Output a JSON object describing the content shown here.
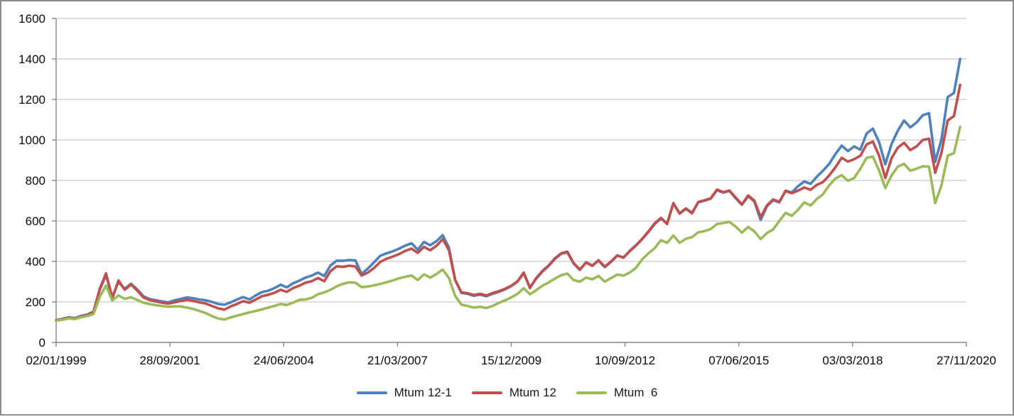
{
  "chart_data": {
    "type": "line",
    "title": "",
    "grid": "horizontal",
    "legend_position": "bottom",
    "x_axis": {
      "labels": [
        "02/01/1999",
        "28/09/2001",
        "24/06/2004",
        "21/03/2007",
        "15/12/2009",
        "10/09/2012",
        "07/06/2015",
        "03/03/2018",
        "27/11/2020"
      ],
      "start_year": 1999.0,
      "end_year": 2020.9
    },
    "y_axis": {
      "min": 0,
      "max": 1600,
      "step": 200,
      "tick_labels": [
        "0",
        "200",
        "400",
        "600",
        "800",
        "1000",
        "1200",
        "1400",
        "1600"
      ]
    },
    "colors": {
      "gridline": "#C9C9C9",
      "axis": "#868686",
      "text": "#0a0a0a",
      "frame": "#8C8C8C",
      "background": "#FFFFFF"
    },
    "sampling": {
      "start_year": 1999.0,
      "step_years": 0.15
    },
    "series": [
      {
        "id": "mtum-12-1",
        "name": "Mtum 12-1",
        "color": "#4F81BD",
        "values": [
          110,
          116,
          124,
          120,
          131,
          138,
          152,
          260,
          333,
          224,
          298,
          265,
          290,
          262,
          228,
          214,
          208,
          202,
          198,
          208,
          215,
          222,
          218,
          212,
          208,
          200,
          190,
          186,
          198,
          212,
          224,
          212,
          232,
          248,
          255,
          268,
          285,
          272,
          292,
          305,
          320,
          330,
          345,
          328,
          380,
          404,
          403,
          407,
          405,
          338,
          365,
          396,
          428,
          440,
          450,
          463,
          478,
          490,
          458,
          496,
          480,
          500,
          530,
          468,
          310,
          245,
          240,
          230,
          236,
          228,
          240,
          250,
          262,
          278,
          300,
          342,
          272,
          315,
          350,
          378,
          412,
          438,
          445,
          390,
          358,
          396,
          380,
          404,
          372,
          398,
          428,
          420,
          450,
          478,
          510,
          545,
          585,
          612,
          588,
          686,
          638,
          662,
          640,
          692,
          700,
          710,
          752,
          740,
          748,
          712,
          680,
          722,
          695,
          605,
          672,
          702,
          692,
          750,
          740,
          772,
          795,
          783,
          818,
          848,
          882,
          930,
          972,
          945,
          968,
          952,
          1032,
          1056,
          988,
          880,
          980,
          1046,
          1096,
          1062,
          1086,
          1122,
          1132,
          892,
          1002,
          1212,
          1232,
          1400
        ]
      },
      {
        "id": "mtum-12",
        "name": "Mtum 12",
        "color": "#C0504D",
        "values": [
          109,
          114,
          122,
          118,
          129,
          136,
          150,
          265,
          341,
          218,
          306,
          260,
          286,
          256,
          222,
          209,
          202,
          196,
          192,
          198,
          205,
          210,
          205,
          198,
          192,
          180,
          168,
          162,
          178,
          190,
          204,
          196,
          212,
          228,
          235,
          245,
          260,
          250,
          268,
          280,
          295,
          302,
          318,
          302,
          352,
          376,
          373,
          379,
          375,
          330,
          345,
          368,
          398,
          413,
          424,
          436,
          452,
          463,
          442,
          472,
          455,
          477,
          510,
          455,
          308,
          247,
          243,
          234,
          240,
          232,
          244,
          253,
          265,
          280,
          302,
          345,
          268,
          318,
          353,
          380,
          415,
          440,
          448,
          392,
          360,
          394,
          378,
          406,
          374,
          400,
          430,
          418,
          452,
          480,
          512,
          548,
          588,
          615,
          585,
          688,
          636,
          660,
          638,
          694,
          702,
          712,
          755,
          742,
          750,
          715,
          682,
          726,
          700,
          618,
          676,
          706,
          695,
          748,
          737,
          750,
          765,
          754,
          778,
          792,
          825,
          865,
          912,
          893,
          905,
          922,
          978,
          992,
          922,
          812,
          910,
          962,
          986,
          950,
          968,
          1000,
          1006,
          838,
          936,
          1096,
          1118,
          1272
        ]
      },
      {
        "id": "mtum-6",
        "name": "Mtum  6",
        "color": "#9BBB59",
        "values": [
          107,
          112,
          118,
          115,
          124,
          130,
          140,
          225,
          281,
          207,
          232,
          215,
          223,
          210,
          196,
          189,
          184,
          180,
          176,
          178,
          178,
          172,
          165,
          155,
          145,
          130,
          118,
          113,
          124,
          132,
          140,
          148,
          155,
          163,
          172,
          180,
          190,
          185,
          196,
          210,
          212,
          220,
          238,
          247,
          260,
          277,
          289,
          297,
          295,
          273,
          276,
          282,
          289,
          297,
          306,
          317,
          324,
          330,
          308,
          336,
          320,
          338,
          360,
          318,
          230,
          187,
          180,
          172,
          176,
          170,
          180,
          195,
          208,
          222,
          240,
          268,
          238,
          258,
          280,
          296,
          315,
          332,
          340,
          308,
          300,
          320,
          312,
          328,
          300,
          318,
          335,
          330,
          345,
          368,
          410,
          440,
          465,
          505,
          492,
          528,
          492,
          512,
          520,
          544,
          550,
          560,
          585,
          590,
          595,
          572,
          542,
          570,
          548,
          510,
          540,
          558,
          600,
          640,
          625,
          655,
          692,
          676,
          708,
          732,
          776,
          810,
          826,
          798,
          812,
          858,
          912,
          918,
          848,
          762,
          825,
          868,
          882,
          848,
          858,
          870,
          868,
          688,
          775,
          922,
          935,
          1065
        ]
      }
    ]
  }
}
